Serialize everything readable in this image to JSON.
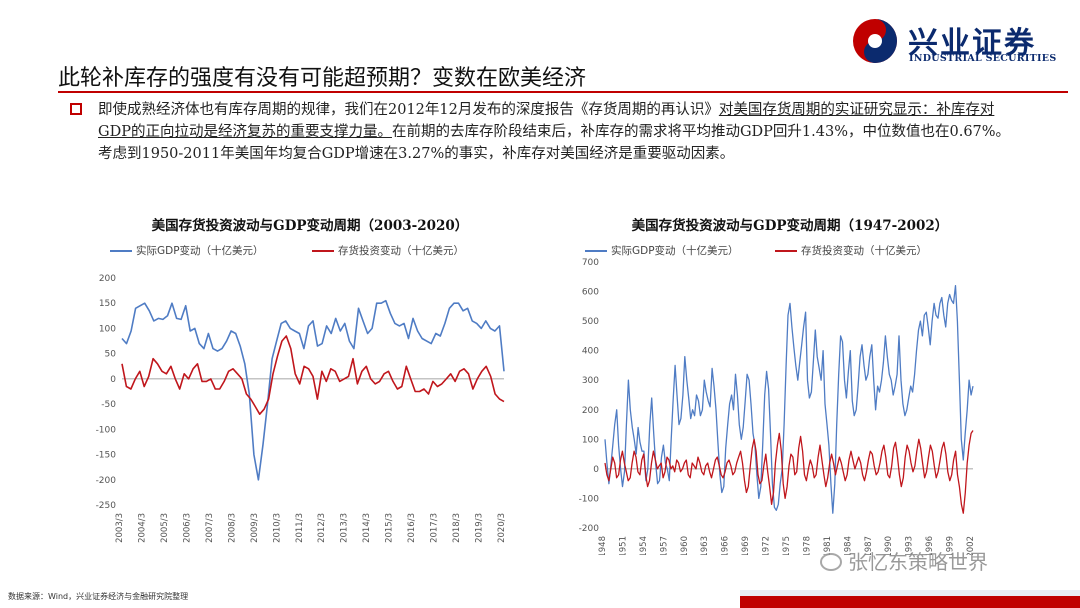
{
  "logo": {
    "cn": "兴业证券",
    "en": "INDUSTRIAL SECURITIES"
  },
  "page_title": "此轮补库存的强度有没有可能超预期？变数在欧美经济",
  "body": {
    "seg1": "即使成熟经济体也有库存周期的规律，我们在2012年12月发布的深度报告《存货周期的再认识》",
    "seg2": "对美国存货周期的实证研究显示：补库存对GDP的正向拉动是经济复苏的重要支撑力量。",
    "seg3": "在前期的去库存阶段结束后，补库存的需求将平均推动GDP回升1.43%，中位数值也在0.67%。考虑到1950-2011年美国年均复合GDP增速在3.27%的事实，补库存对美国经济是重要驱动因素。"
  },
  "colors": {
    "blue": "#4f7cc4",
    "red": "#c0161c",
    "accent": "#c00000",
    "axis": "#888888"
  },
  "chart_data": [
    {
      "type": "line",
      "title": "美国存货投资波动与GDP变动周期（2003-2020）",
      "ylim": [
        -250,
        200
      ],
      "yticks": [
        -250,
        -200,
        -150,
        -100,
        -50,
        0,
        50,
        100,
        150,
        200
      ],
      "x_tick_labels": [
        "2003/3",
        "2004/3",
        "2005/3",
        "2006/3",
        "2007/3",
        "2008/3",
        "2009/3",
        "2010/3",
        "2011/3",
        "2012/3",
        "2013/3",
        "2014/3",
        "2015/3",
        "2016/3",
        "2017/3",
        "2018/3",
        "2019/3",
        "2020/3"
      ],
      "legend_position": "top",
      "series": [
        {
          "name": "实际GDP变动（十亿美元）",
          "color": "#4f7cc4",
          "values": [
            80,
            70,
            95,
            140,
            145,
            150,
            135,
            115,
            120,
            118,
            125,
            150,
            120,
            118,
            145,
            95,
            100,
            70,
            60,
            90,
            60,
            55,
            60,
            75,
            95,
            90,
            65,
            30,
            -30,
            -150,
            -200,
            -130,
            -50,
            40,
            75,
            110,
            115,
            100,
            95,
            90,
            60,
            105,
            115,
            65,
            70,
            105,
            90,
            120,
            95,
            110,
            75,
            60,
            140,
            115,
            90,
            100,
            150,
            150,
            155,
            130,
            110,
            105,
            110,
            80,
            120,
            95,
            80,
            75,
            70,
            90,
            85,
            110,
            140,
            150,
            150,
            135,
            140,
            115,
            110,
            100,
            115,
            100,
            95,
            105,
            15
          ]
        },
        {
          "name": "存货投资变动（十亿美元）",
          "color": "#c0161c",
          "values": [
            30,
            -15,
            -20,
            0,
            15,
            -15,
            5,
            40,
            30,
            15,
            10,
            25,
            0,
            -20,
            10,
            0,
            20,
            30,
            -5,
            -5,
            0,
            -20,
            -20,
            -5,
            15,
            20,
            10,
            0,
            -30,
            -40,
            -55,
            -70,
            -60,
            -40,
            10,
            45,
            75,
            85,
            60,
            10,
            -10,
            25,
            20,
            5,
            -40,
            15,
            -5,
            20,
            15,
            -5,
            0,
            5,
            40,
            -10,
            15,
            25,
            0,
            -10,
            -5,
            10,
            15,
            -5,
            -20,
            -15,
            25,
            0,
            -25,
            -25,
            -20,
            -30,
            -5,
            -15,
            -10,
            0,
            10,
            -5,
            15,
            20,
            10,
            -20,
            0,
            15,
            25,
            5,
            -30,
            -40,
            -45
          ]
        }
      ]
    },
    {
      "type": "line",
      "title": "美国存货投资波动与GDP变动周期（1947-2002）",
      "ylim": [
        -200,
        700
      ],
      "yticks": [
        -200,
        -100,
        0,
        100,
        200,
        300,
        400,
        500,
        600,
        700
      ],
      "x_tick_labels": [
        "1948",
        "1951",
        "1954",
        "1957",
        "1960",
        "1963",
        "1966",
        "1969",
        "1972",
        "1975",
        "1978",
        "1981",
        "1984",
        "1987",
        "1990",
        "1993",
        "1996",
        "1999",
        "2002"
      ],
      "legend_position": "top",
      "series": [
        {
          "name": "实际GDP变动（十亿美元）",
          "color": "#4f7cc4",
          "values": [
            100,
            20,
            -50,
            10,
            80,
            150,
            200,
            80,
            0,
            -60,
            -10,
            150,
            300,
            200,
            140,
            100,
            50,
            140,
            90,
            60,
            60,
            -40,
            0,
            150,
            240,
            120,
            20,
            -50,
            -40,
            40,
            80,
            20,
            0,
            -40,
            100,
            230,
            350,
            250,
            150,
            170,
            250,
            380,
            300,
            240,
            170,
            200,
            180,
            250,
            230,
            180,
            200,
            300,
            260,
            230,
            210,
            340,
            280,
            200,
            90,
            -20,
            -80,
            -60,
            70,
            150,
            220,
            250,
            200,
            320,
            250,
            150,
            100,
            140,
            230,
            320,
            300,
            220,
            120,
            80,
            -20,
            -100,
            -60,
            80,
            250,
            330,
            270,
            120,
            -50,
            -130,
            -140,
            -120,
            -50,
            0,
            150,
            350,
            520,
            560,
            480,
            410,
            350,
            300,
            360,
            420,
            480,
            530,
            300,
            240,
            260,
            360,
            470,
            380,
            340,
            300,
            400,
            220,
            150,
            80,
            -50,
            -150,
            -50,
            150,
            320,
            450,
            430,
            300,
            240,
            330,
            400,
            230,
            180,
            200,
            280,
            380,
            420,
            350,
            300,
            320,
            380,
            420,
            300,
            200,
            280,
            260,
            300,
            360,
            450,
            380,
            320,
            300,
            250,
            280,
            320,
            450,
            300,
            220,
            180,
            200,
            240,
            280,
            260,
            320,
            400,
            470,
            500,
            450,
            520,
            530,
            480,
            420,
            500,
            560,
            520,
            510,
            560,
            580,
            520,
            480,
            560,
            590,
            570,
            560,
            620,
            500,
            300,
            100,
            30,
            120,
            200,
            300,
            250,
            280
          ]
        },
        {
          "name": "存货投资变动（十亿美元）",
          "color": "#c0161c",
          "values": [
            20,
            -20,
            -40,
            0,
            40,
            20,
            -30,
            -20,
            30,
            60,
            20,
            -10,
            -40,
            -30,
            20,
            60,
            40,
            -10,
            -20,
            30,
            50,
            -20,
            -60,
            -40,
            20,
            60,
            30,
            0,
            10,
            20,
            -30,
            -10,
            40,
            30,
            0,
            10,
            -10,
            30,
            20,
            -10,
            0,
            20,
            30,
            -20,
            -30,
            20,
            10,
            0,
            40,
            20,
            -10,
            -20,
            10,
            20,
            -10,
            -30,
            0,
            30,
            40,
            10,
            -20,
            -30,
            -10,
            20,
            30,
            10,
            -20,
            -10,
            20,
            40,
            60,
            20,
            -40,
            -80,
            -60,
            10,
            70,
            100,
            60,
            -20,
            -50,
            -40,
            10,
            50,
            -10,
            -60,
            -120,
            -80,
            20,
            80,
            120,
            60,
            -50,
            -100,
            -60,
            10,
            50,
            40,
            -20,
            -10,
            70,
            110,
            60,
            -20,
            -40,
            0,
            30,
            10,
            -30,
            -20,
            40,
            80,
            30,
            -20,
            -60,
            -30,
            20,
            50,
            20,
            -20,
            10,
            40,
            20,
            -10,
            -40,
            -20,
            30,
            60,
            30,
            0,
            20,
            40,
            20,
            -20,
            -40,
            -10,
            30,
            60,
            50,
            10,
            -20,
            -10,
            20,
            60,
            80,
            40,
            -20,
            -30,
            10,
            70,
            90,
            40,
            -20,
            -60,
            -30,
            40,
            80,
            60,
            20,
            -10,
            10,
            60,
            100,
            70,
            20,
            -30,
            -10,
            40,
            80,
            60,
            10,
            -30,
            -10,
            30,
            70,
            90,
            50,
            -10,
            -40,
            -20,
            30,
            60,
            -20,
            -60,
            -120,
            -150,
            -80,
            20,
            80,
            120,
            130
          ]
        }
      ]
    }
  ],
  "source": "数据来源：Wind，兴业证券经济与金融研究院整理",
  "watermark": "张忆东策略世界"
}
